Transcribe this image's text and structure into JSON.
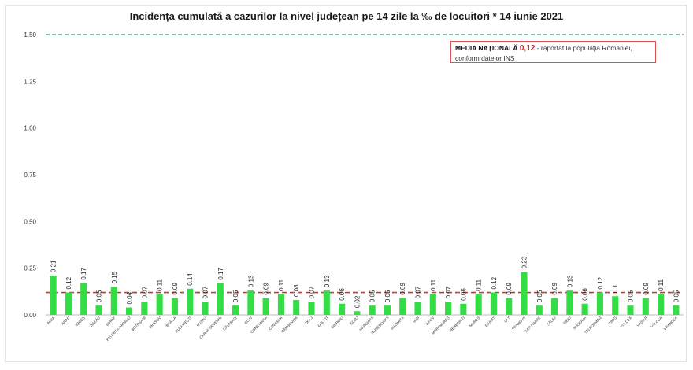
{
  "chart_data": {
    "type": "bar",
    "title": "Incidența cumulată a cazurilor la nivel județean pe 14 zile la ‰ de locuitori *  14 iunie 2021",
    "categories": [
      "ALBA",
      "ARAD",
      "ARGEȘ",
      "BACĂU",
      "BIHOR",
      "BISTRIȚA-NĂSĂUD",
      "BOTOȘANI",
      "BRAȘOV",
      "BRĂILA",
      "BUCUREȘTI",
      "BUZĂU",
      "CARAȘ-SEVERIN",
      "CĂLĂRAȘI",
      "CLUJ",
      "CONSTANȚA",
      "COVASNA",
      "DÂMBOVIȚA",
      "DOLJ",
      "GALAȚI",
      "GIURGIU",
      "GORJ",
      "HARGHITA",
      "HUNEDOARA",
      "IALOMIȚA",
      "IAȘI",
      "ILFOV",
      "MARAMUREȘ",
      "MEHEDINȚI",
      "MUREȘ",
      "NEAMȚ",
      "OLT",
      "PRAHOVA",
      "SATU MARE",
      "SĂLAJ",
      "SIBIU",
      "SUCEAVA",
      "TELEORMAN",
      "TIMIȘ",
      "TULCEA",
      "VASLUI",
      "VÂLCEA",
      "VRANCEA"
    ],
    "values": [
      0.21,
      0.12,
      0.17,
      0.05,
      0.15,
      0.04,
      0.07,
      0.11,
      0.09,
      0.14,
      0.07,
      0.17,
      0.05,
      0.13,
      0.09,
      0.11,
      0.08,
      0.07,
      0.13,
      0.06,
      0.02,
      0.05,
      0.05,
      0.09,
      0.07,
      0.11,
      0.07,
      0.06,
      0.11,
      0.12,
      0.09,
      0.23,
      0.05,
      0.09,
      0.13,
      0.06,
      0.12,
      0.1,
      0.05,
      0.09,
      0.11,
      0.05
    ],
    "value_labels": [
      "0.21",
      "0.12",
      "0.17",
      "0.05",
      "0.15",
      "0.04",
      "0.07",
      "0.11",
      "0.09",
      "0.14",
      "0.07",
      "0.17",
      "0.05",
      "0.13",
      "0.09",
      "0.11",
      "0.08",
      "0.07",
      "0.13",
      "0.06",
      "0.02",
      "0.05",
      "0.05",
      "0.09",
      "0.07",
      "0.11",
      "0.07",
      "0.06",
      "0.11",
      "0.12",
      "0.09",
      "0.23",
      "0.05",
      "0.09",
      "0.13",
      "0.06",
      "0.12",
      "0.1",
      "0.05",
      "0.09",
      "0.11",
      "0.05"
    ],
    "y_ticks": [
      "0.00",
      "0.25",
      "0.50",
      "0.75",
      "1.00",
      "1.25",
      "1.50"
    ],
    "ylim": [
      0,
      1.5
    ],
    "reference_lines": [
      {
        "value": 1.5,
        "style": "dashed",
        "color": "#3a9a6e"
      },
      {
        "value": 0.12,
        "style": "dashed",
        "color": "#d9342b"
      }
    ],
    "bar_color": "#33dd44",
    "grid": false
  },
  "legend": {
    "label": "MEDIA NAȚIONALĂ",
    "value": "0,12",
    "text_line1": " - raportat la populația României,",
    "text_line2": "conform datelor INS"
  }
}
